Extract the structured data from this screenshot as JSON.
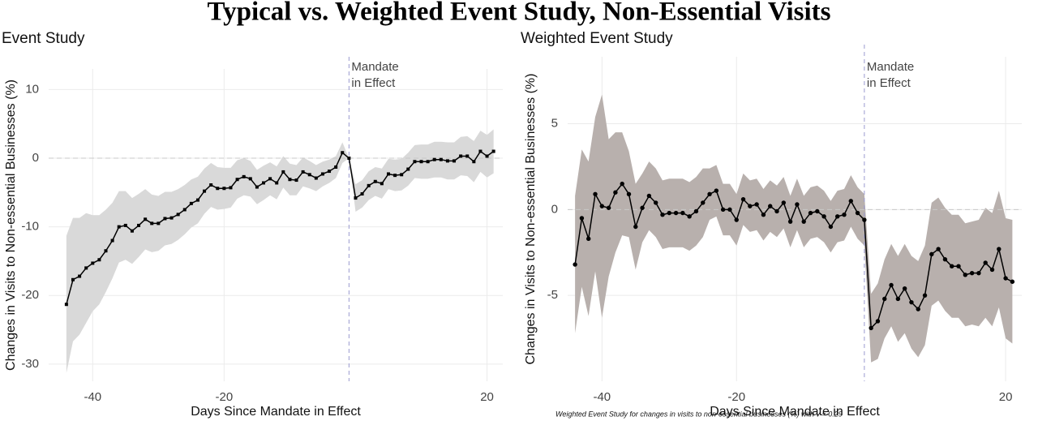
{
  "title": "Typical vs. Weighted Event Study, Non-Essential Visits",
  "caption": "Weighted Event Study for changes in visits to non-essential businesses (%) with v = 0.29",
  "chart_data": [
    {
      "type": "line",
      "title": "Event Study",
      "xlabel": "Days Since Mandate in Effect",
      "ylabel": "Changes in Visits to Non-essential Businesses (%)",
      "x": [
        -44,
        -43,
        -42,
        -41,
        -40,
        -39,
        -38,
        -37,
        -36,
        -35,
        -34,
        -33,
        -32,
        -31,
        -30,
        -29,
        -28,
        -27,
        -26,
        -25,
        -24,
        -23,
        -22,
        -21,
        -20,
        -19,
        -18,
        -17,
        -16,
        -15,
        -14,
        -13,
        -12,
        -11,
        -10,
        -9,
        -8,
        -7,
        -6,
        -5,
        -4,
        -3,
        -2,
        -1,
        0,
        1,
        2,
        3,
        4,
        5,
        6,
        7,
        8,
        9,
        10,
        11,
        12,
        13,
        14,
        15,
        16,
        17,
        18,
        19,
        20,
        21
      ],
      "values": [
        -21.3,
        -17.7,
        -17.2,
        -16.0,
        -15.3,
        -14.8,
        -13.5,
        -12.0,
        -10.0,
        -9.8,
        -10.6,
        -9.8,
        -8.9,
        -9.5,
        -9.5,
        -8.8,
        -8.7,
        -8.2,
        -7.5,
        -6.6,
        -6.1,
        -4.8,
        -3.9,
        -4.4,
        -4.4,
        -4.3,
        -3.1,
        -2.7,
        -3.0,
        -4.2,
        -3.6,
        -3.0,
        -3.6,
        -2.0,
        -3.1,
        -3.2,
        -2.0,
        -2.4,
        -2.9,
        -2.3,
        -1.9,
        -1.3,
        0.8,
        0,
        -5.8,
        -5.2,
        -4.0,
        -3.4,
        -3.7,
        -2.3,
        -2.5,
        -2.4,
        -1.6,
        -0.5,
        -0.5,
        -0.5,
        -0.2,
        -0.2,
        -0.4,
        -0.4,
        0.3,
        0.3,
        -0.5,
        1.0,
        0.3,
        1.0
      ],
      "lower": [
        -31.3,
        -26.7,
        -25.7,
        -24.0,
        -22.3,
        -21.3,
        -19.5,
        -17.5,
        -15.2,
        -14.8,
        -15.4,
        -14.4,
        -13.3,
        -13.7,
        -13.5,
        -12.7,
        -12.5,
        -11.9,
        -11.1,
        -10.1,
        -9.5,
        -8.1,
        -7.1,
        -7.5,
        -7.4,
        -7.2,
        -5.9,
        -5.4,
        -5.6,
        -6.7,
        -6.1,
        -5.4,
        -6.0,
        -4.3,
        -5.4,
        -5.4,
        -4.1,
        -4.4,
        -4.8,
        -4.1,
        -3.6,
        -2.9,
        -0.7,
        0,
        -7.8,
        -7.2,
        -6.1,
        -5.5,
        -5.9,
        -4.5,
        -4.8,
        -4.7,
        -4.0,
        -2.9,
        -3.0,
        -3.0,
        -2.8,
        -2.8,
        -3.1,
        -3.1,
        -2.5,
        -2.6,
        -3.5,
        -2.0,
        -2.8,
        -2.2
      ],
      "upper": [
        -11.3,
        -8.7,
        -8.7,
        -8.0,
        -8.3,
        -8.3,
        -7.5,
        -6.5,
        -4.8,
        -4.8,
        -5.8,
        -5.2,
        -4.5,
        -5.3,
        -5.5,
        -4.9,
        -4.9,
        -4.5,
        -3.9,
        -3.1,
        -2.7,
        -1.5,
        -0.7,
        -1.3,
        -1.4,
        -1.4,
        -0.3,
        0.0,
        -0.4,
        -1.7,
        -1.1,
        -0.6,
        -1.2,
        0.3,
        -0.8,
        -1.0,
        0.1,
        -0.4,
        -1.0,
        -0.5,
        -0.2,
        0.3,
        2.3,
        0,
        -3.8,
        -3.2,
        -1.9,
        -1.3,
        -1.5,
        -0.1,
        -0.2,
        -0.1,
        0.8,
        1.9,
        2.0,
        2.0,
        2.4,
        2.4,
        2.3,
        2.3,
        3.1,
        3.2,
        2.5,
        4.0,
        3.4,
        4.2
      ],
      "color": "#000000",
      "band_color": "#d9d9d9",
      "marker": "square",
      "xlim": [
        -46.7,
        22.4
      ],
      "ylim": [
        -32.5,
        13.0
      ],
      "xticks": [
        -40,
        -20,
        20
      ],
      "yticks": [
        -30,
        -20,
        -10,
        0,
        10
      ],
      "grid": true,
      "hline": 0,
      "vline": -1,
      "annotation": [
        "Mandate",
        "in Effect"
      ]
    },
    {
      "type": "line",
      "title": "Weighted Event Study",
      "xlabel": "Days Since Mandate in Effect",
      "ylabel": "Changes in Visits to Non-essential Businesses (%)",
      "x": [
        -44,
        -43,
        -42,
        -41,
        -40,
        -39,
        -38,
        -37,
        -36,
        -35,
        -34,
        -33,
        -32,
        -31,
        -30,
        -29,
        -28,
        -27,
        -26,
        -25,
        -24,
        -23,
        -22,
        -21,
        -20,
        -19,
        -18,
        -17,
        -16,
        -15,
        -14,
        -13,
        -12,
        -11,
        -10,
        -9,
        -8,
        -7,
        -6,
        -5,
        -4,
        -3,
        -2,
        -1,
        0,
        1,
        2,
        3,
        4,
        5,
        6,
        7,
        8,
        9,
        10,
        11,
        12,
        13,
        14,
        15,
        16,
        17,
        18,
        19,
        20,
        21
      ],
      "values": [
        -3.2,
        -0.5,
        -1.7,
        0.9,
        0.2,
        0.1,
        1.0,
        1.5,
        0.9,
        -1.0,
        0.1,
        0.8,
        0.4,
        -0.3,
        -0.2,
        -0.2,
        -0.2,
        -0.4,
        -0.1,
        0.4,
        0.9,
        1.1,
        0.0,
        0.0,
        -0.6,
        0.6,
        0.2,
        0.3,
        -0.3,
        0.2,
        -0.1,
        0.4,
        -0.7,
        0.3,
        -0.7,
        -0.2,
        -0.1,
        -0.4,
        -1.0,
        -0.4,
        -0.3,
        0.5,
        -0.2,
        -0.6,
        -6.9,
        -6.5,
        -5.2,
        -4.4,
        -5.2,
        -4.6,
        -5.4,
        -5.8,
        -5.0,
        -2.6,
        -2.3,
        -2.9,
        -3.3,
        -3.3,
        -3.8,
        -3.7,
        -3.7,
        -3.1,
        -3.5,
        -2.3,
        -4.0,
        -4.2
      ],
      "lower": [
        -7.2,
        -4.5,
        -6.2,
        -3.6,
        -6.3,
        -3.9,
        -2.5,
        -1.5,
        -1.6,
        -3.5,
        -1.9,
        -1.2,
        -1.6,
        -2.3,
        -2.2,
        -2.2,
        -2.2,
        -2.4,
        -2.1,
        -1.6,
        -0.6,
        -0.4,
        -1.5,
        -1.5,
        -2.1,
        -0.9,
        -1.3,
        -1.2,
        -1.8,
        -1.3,
        -1.6,
        -1.1,
        -2.2,
        -1.2,
        -2.2,
        -1.7,
        -1.6,
        -1.9,
        -2.5,
        -1.9,
        -1.8,
        -1.0,
        -1.7,
        -2.1,
        -8.9,
        -8.7,
        -7.5,
        -6.8,
        -7.7,
        -7.2,
        -8.1,
        -8.6,
        -7.9,
        -5.6,
        -5.3,
        -5.9,
        -6.3,
        -6.3,
        -6.8,
        -6.7,
        -6.8,
        -6.3,
        -6.8,
        -5.7,
        -7.5,
        -7.8
      ],
      "upper": [
        0.8,
        3.5,
        2.8,
        5.4,
        6.7,
        4.1,
        4.5,
        4.5,
        3.4,
        1.5,
        2.1,
        2.8,
        2.4,
        1.7,
        1.8,
        1.8,
        1.8,
        1.6,
        1.9,
        2.4,
        2.4,
        2.6,
        1.5,
        1.5,
        0.9,
        2.1,
        1.7,
        1.8,
        1.2,
        1.7,
        1.4,
        1.9,
        0.8,
        1.8,
        0.8,
        1.3,
        1.4,
        1.1,
        0.5,
        1.1,
        1.2,
        2.0,
        1.3,
        0.9,
        -4.9,
        -4.3,
        -2.9,
        -2.0,
        -2.7,
        -2.0,
        -2.7,
        -3.0,
        -2.1,
        0.4,
        0.7,
        0.1,
        -0.3,
        -0.3,
        -0.8,
        -0.7,
        -0.6,
        0.1,
        -0.2,
        1.1,
        -0.5,
        -0.6
      ],
      "color": "#000000",
      "band_color": "#b8b0ad",
      "marker": "circle",
      "xlim": [
        -45.1,
        22.4
      ],
      "ylim": [
        -10.0,
        8.9
      ],
      "xticks": [
        -40,
        -20,
        20
      ],
      "yticks": [
        -5,
        0,
        5
      ],
      "grid": true,
      "hline": 0,
      "vline": -1,
      "annotation": [
        "Mandate",
        "in Effect"
      ]
    }
  ]
}
